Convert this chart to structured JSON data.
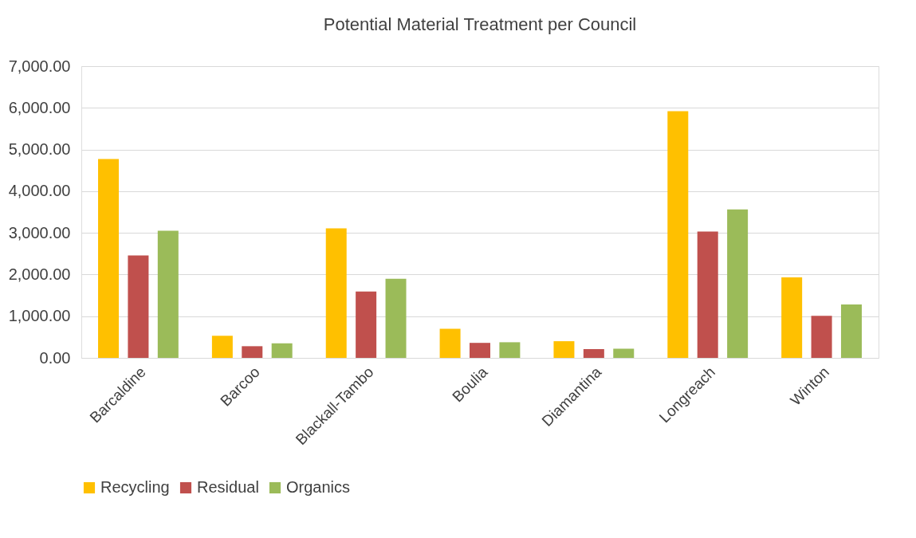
{
  "chart_data": {
    "type": "bar",
    "title": "Potential Material Treatment per Council",
    "categories": [
      "Barcaldine",
      "Barcoo",
      "Blackall-Tambo",
      "Boulia",
      "Diamantina",
      "Longreach",
      "Winton"
    ],
    "series": [
      {
        "name": "Recycling",
        "color": "#ffc000",
        "values": [
          4770,
          530,
          3110,
          700,
          400,
          5920,
          1930
        ]
      },
      {
        "name": "Residual",
        "color": "#c0504d",
        "values": [
          2460,
          280,
          1590,
          360,
          210,
          3030,
          1010
        ]
      },
      {
        "name": "Organics",
        "color": "#9bbb59",
        "values": [
          3050,
          350,
          1900,
          375,
          220,
          3560,
          1280
        ]
      }
    ],
    "ylim": [
      0,
      7000
    ],
    "yticks": [
      {
        "value": 0,
        "label": "0.00"
      },
      {
        "value": 1000,
        "label": "1,000.00"
      },
      {
        "value": 2000,
        "label": "2,000.00"
      },
      {
        "value": 3000,
        "label": "3,000.00"
      },
      {
        "value": 4000,
        "label": "4,000.00"
      },
      {
        "value": 5000,
        "label": "5,000.00"
      },
      {
        "value": 6000,
        "label": "6,000.00"
      },
      {
        "value": 7000,
        "label": "7,000.00"
      }
    ],
    "grid": "y",
    "legend": "bottom"
  }
}
